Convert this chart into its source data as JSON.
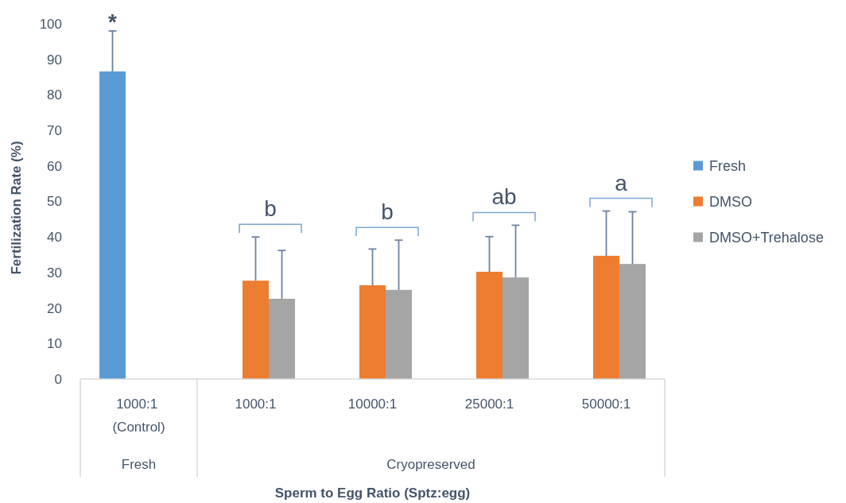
{
  "chart_data": {
    "type": "bar",
    "xlabel": "Sperm to Egg Ratio (Sptz:egg)",
    "ylabel": "Fertilization Rate (%)",
    "categories": [
      "1000:1 (Control)",
      "1000:1",
      "10000:1",
      "25000:1",
      "50000:1"
    ],
    "series": [
      {
        "name": "Fresh",
        "color": "#5b9bd5",
        "values": [
          86.6,
          null,
          null,
          null,
          null
        ],
        "errors": [
          [
            86.6,
            98
          ],
          null,
          null,
          null,
          null
        ]
      },
      {
        "name": "DMSO",
        "color": "#ed7d31",
        "values": [
          null,
          27.7,
          26.4,
          30.2,
          34.7
        ],
        "errors": [
          null,
          [
            27.7,
            40
          ],
          [
            26.4,
            36.6
          ],
          [
            30.2,
            40.1
          ],
          [
            34.7,
            47.3
          ]
        ]
      },
      {
        "name": "DMSO+Trehalose",
        "color": "#a5a5a5",
        "values": [
          null,
          22.6,
          25.1,
          28.6,
          32.4
        ],
        "errors": [
          null,
          [
            22.6,
            36.2
          ],
          [
            25.1,
            39.1
          ],
          [
            28.6,
            43.3
          ],
          [
            32.4,
            47.1
          ]
        ]
      }
    ],
    "ylim": [
      0,
      100
    ],
    "yticks": [
      0,
      10,
      20,
      30,
      40,
      50,
      60,
      70,
      80,
      90,
      100
    ],
    "grid": false,
    "legend": "right",
    "annotations": [
      "*",
      "b",
      "b",
      "ab",
      "a",
      "Fresh",
      "Cryopreserved"
    ]
  }
}
